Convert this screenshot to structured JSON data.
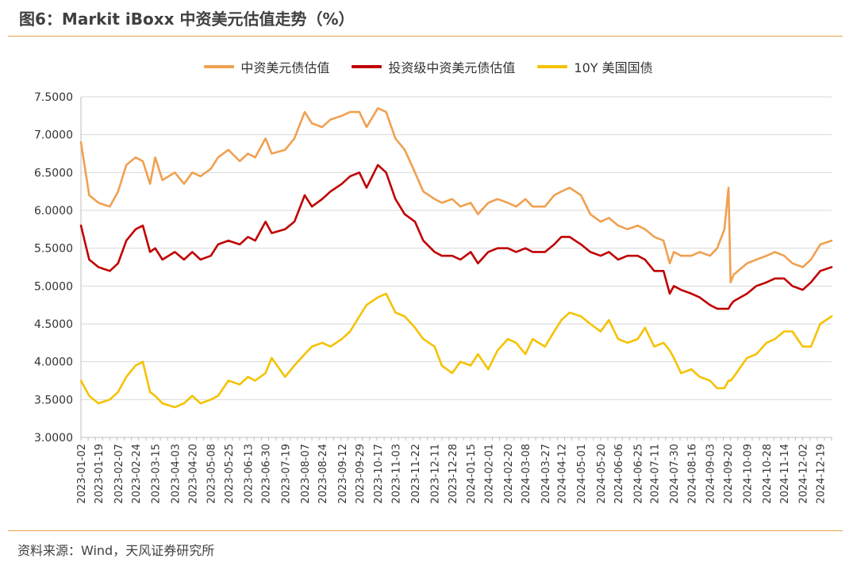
{
  "figure": {
    "title": "图6：Markit iBoxx 中资美元估值走势（%）",
    "source": "资料来源：Wind，天风证券研究所"
  },
  "chart_data": {
    "type": "line",
    "title": "图6：Markit iBoxx 中资美元估值走势（%）",
    "xlabel": "",
    "ylabel": "",
    "ylim": [
      3.0,
      7.5
    ],
    "yticks": [
      "3.0000",
      "3.5000",
      "4.0000",
      "4.5000",
      "5.0000",
      "5.5000",
      "6.0000",
      "6.5000",
      "7.0000",
      "7.5000"
    ],
    "x_range": [
      "2023-01-02",
      "2024-12-30"
    ],
    "x_ticks": [
      "2023-01-02",
      "2023-01-19",
      "2023-02-07",
      "2023-02-24",
      "2023-03-15",
      "2023-04-03",
      "2023-04-20",
      "2023-05-08",
      "2023-05-25",
      "2023-06-13",
      "2023-06-30",
      "2023-07-19",
      "2023-08-07",
      "2023-08-24",
      "2023-09-12",
      "2023-09-29",
      "2023-10-17",
      "2023-11-03",
      "2023-11-22",
      "2023-12-11",
      "2023-12-28",
      "2024-01-15",
      "2024-02-01",
      "2024-02-20",
      "2024-03-08",
      "2024-03-27",
      "2024-04-12",
      "2024-05-01",
      "2024-05-20",
      "2024-06-06",
      "2024-06-25",
      "2024-07-11",
      "2024-07-30",
      "2024-08-16",
      "2024-09-03",
      "2024-09-20",
      "2024-10-09",
      "2024-10-28",
      "2024-11-14",
      "2024-12-02",
      "2024-12-19"
    ],
    "grid": true,
    "legend_position": "top",
    "series": [
      {
        "name": "中资美元债估值",
        "color": "#F0A050",
        "points": [
          [
            "2023-01-02",
            6.9
          ],
          [
            "2023-01-10",
            6.2
          ],
          [
            "2023-01-19",
            6.1
          ],
          [
            "2023-01-30",
            6.05
          ],
          [
            "2023-02-07",
            6.25
          ],
          [
            "2023-02-15",
            6.6
          ],
          [
            "2023-02-24",
            6.7
          ],
          [
            "2023-03-03",
            6.65
          ],
          [
            "2023-03-10",
            6.35
          ],
          [
            "2023-03-15",
            6.7
          ],
          [
            "2023-03-22",
            6.4
          ],
          [
            "2023-04-03",
            6.5
          ],
          [
            "2023-04-12",
            6.35
          ],
          [
            "2023-04-20",
            6.5
          ],
          [
            "2023-04-28",
            6.45
          ],
          [
            "2023-05-08",
            6.55
          ],
          [
            "2023-05-15",
            6.7
          ],
          [
            "2023-05-25",
            6.8
          ],
          [
            "2023-06-05",
            6.65
          ],
          [
            "2023-06-13",
            6.75
          ],
          [
            "2023-06-20",
            6.7
          ],
          [
            "2023-06-30",
            6.95
          ],
          [
            "2023-07-06",
            6.75
          ],
          [
            "2023-07-19",
            6.8
          ],
          [
            "2023-07-28",
            6.95
          ],
          [
            "2023-08-07",
            7.3
          ],
          [
            "2023-08-14",
            7.15
          ],
          [
            "2023-08-24",
            7.1
          ],
          [
            "2023-09-01",
            7.2
          ],
          [
            "2023-09-12",
            7.25
          ],
          [
            "2023-09-20",
            7.3
          ],
          [
            "2023-09-29",
            7.3
          ],
          [
            "2023-10-06",
            7.1
          ],
          [
            "2023-10-17",
            7.35
          ],
          [
            "2023-10-25",
            7.3
          ],
          [
            "2023-11-03",
            6.95
          ],
          [
            "2023-11-12",
            6.8
          ],
          [
            "2023-11-22",
            6.5
          ],
          [
            "2023-11-30",
            6.25
          ],
          [
            "2023-12-11",
            6.15
          ],
          [
            "2023-12-18",
            6.1
          ],
          [
            "2023-12-28",
            6.15
          ],
          [
            "2024-01-05",
            6.05
          ],
          [
            "2024-01-15",
            6.1
          ],
          [
            "2024-01-22",
            5.95
          ],
          [
            "2024-02-01",
            6.1
          ],
          [
            "2024-02-10",
            6.15
          ],
          [
            "2024-02-20",
            6.1
          ],
          [
            "2024-02-28",
            6.05
          ],
          [
            "2024-03-08",
            6.15
          ],
          [
            "2024-03-15",
            6.05
          ],
          [
            "2024-03-27",
            6.05
          ],
          [
            "2024-04-05",
            6.2
          ],
          [
            "2024-04-12",
            6.25
          ],
          [
            "2024-04-20",
            6.3
          ],
          [
            "2024-05-01",
            6.2
          ],
          [
            "2024-05-10",
            5.95
          ],
          [
            "2024-05-20",
            5.85
          ],
          [
            "2024-05-28",
            5.9
          ],
          [
            "2024-06-06",
            5.8
          ],
          [
            "2024-06-15",
            5.75
          ],
          [
            "2024-06-25",
            5.8
          ],
          [
            "2024-07-02",
            5.75
          ],
          [
            "2024-07-11",
            5.65
          ],
          [
            "2024-07-20",
            5.6
          ],
          [
            "2024-07-26",
            5.3
          ],
          [
            "2024-07-30",
            5.45
          ],
          [
            "2024-08-06",
            5.4
          ],
          [
            "2024-08-16",
            5.4
          ],
          [
            "2024-08-24",
            5.45
          ],
          [
            "2024-09-03",
            5.4
          ],
          [
            "2024-09-10",
            5.5
          ],
          [
            "2024-09-17",
            5.75
          ],
          [
            "2024-09-21",
            6.3
          ],
          [
            "2024-09-23",
            5.05
          ],
          [
            "2024-09-26",
            5.15
          ],
          [
            "2024-10-09",
            5.3
          ],
          [
            "2024-10-18",
            5.35
          ],
          [
            "2024-10-28",
            5.4
          ],
          [
            "2024-11-05",
            5.45
          ],
          [
            "2024-11-14",
            5.4
          ],
          [
            "2024-11-22",
            5.3
          ],
          [
            "2024-12-02",
            5.25
          ],
          [
            "2024-12-10",
            5.35
          ],
          [
            "2024-12-19",
            5.55
          ],
          [
            "2024-12-30",
            5.6
          ]
        ]
      },
      {
        "name": "投资级中资美元债估值",
        "color": "#C00000",
        "points": [
          [
            "2023-01-02",
            5.8
          ],
          [
            "2023-01-10",
            5.35
          ],
          [
            "2023-01-19",
            5.25
          ],
          [
            "2023-01-30",
            5.2
          ],
          [
            "2023-02-07",
            5.3
          ],
          [
            "2023-02-15",
            5.6
          ],
          [
            "2023-02-24",
            5.75
          ],
          [
            "2023-03-03",
            5.8
          ],
          [
            "2023-03-10",
            5.45
          ],
          [
            "2023-03-15",
            5.5
          ],
          [
            "2023-03-22",
            5.35
          ],
          [
            "2023-04-03",
            5.45
          ],
          [
            "2023-04-12",
            5.35
          ],
          [
            "2023-04-20",
            5.45
          ],
          [
            "2023-04-28",
            5.35
          ],
          [
            "2023-05-08",
            5.4
          ],
          [
            "2023-05-15",
            5.55
          ],
          [
            "2023-05-25",
            5.6
          ],
          [
            "2023-06-05",
            5.55
          ],
          [
            "2023-06-13",
            5.65
          ],
          [
            "2023-06-20",
            5.6
          ],
          [
            "2023-06-30",
            5.85
          ],
          [
            "2023-07-06",
            5.7
          ],
          [
            "2023-07-19",
            5.75
          ],
          [
            "2023-07-28",
            5.85
          ],
          [
            "2023-08-07",
            6.2
          ],
          [
            "2023-08-14",
            6.05
          ],
          [
            "2023-08-24",
            6.15
          ],
          [
            "2023-09-01",
            6.25
          ],
          [
            "2023-09-12",
            6.35
          ],
          [
            "2023-09-20",
            6.45
          ],
          [
            "2023-09-29",
            6.5
          ],
          [
            "2023-10-06",
            6.3
          ],
          [
            "2023-10-17",
            6.6
          ],
          [
            "2023-10-25",
            6.5
          ],
          [
            "2023-11-03",
            6.15
          ],
          [
            "2023-11-12",
            5.95
          ],
          [
            "2023-11-22",
            5.85
          ],
          [
            "2023-11-30",
            5.6
          ],
          [
            "2023-12-11",
            5.45
          ],
          [
            "2023-12-18",
            5.4
          ],
          [
            "2023-12-28",
            5.4
          ],
          [
            "2024-01-05",
            5.35
          ],
          [
            "2024-01-15",
            5.45
          ],
          [
            "2024-01-22",
            5.3
          ],
          [
            "2024-02-01",
            5.45
          ],
          [
            "2024-02-10",
            5.5
          ],
          [
            "2024-02-20",
            5.5
          ],
          [
            "2024-02-28",
            5.45
          ],
          [
            "2024-03-08",
            5.5
          ],
          [
            "2024-03-15",
            5.45
          ],
          [
            "2024-03-27",
            5.45
          ],
          [
            "2024-04-05",
            5.55
          ],
          [
            "2024-04-12",
            5.65
          ],
          [
            "2024-04-20",
            5.65
          ],
          [
            "2024-05-01",
            5.55
          ],
          [
            "2024-05-10",
            5.45
          ],
          [
            "2024-05-20",
            5.4
          ],
          [
            "2024-05-28",
            5.45
          ],
          [
            "2024-06-06",
            5.35
          ],
          [
            "2024-06-15",
            5.4
          ],
          [
            "2024-06-25",
            5.4
          ],
          [
            "2024-07-02",
            5.35
          ],
          [
            "2024-07-11",
            5.2
          ],
          [
            "2024-07-20",
            5.2
          ],
          [
            "2024-07-26",
            4.9
          ],
          [
            "2024-07-30",
            5.0
          ],
          [
            "2024-08-06",
            4.95
          ],
          [
            "2024-08-16",
            4.9
          ],
          [
            "2024-08-24",
            4.85
          ],
          [
            "2024-09-03",
            4.75
          ],
          [
            "2024-09-10",
            4.7
          ],
          [
            "2024-09-17",
            4.7
          ],
          [
            "2024-09-21",
            4.7
          ],
          [
            "2024-09-23",
            4.75
          ],
          [
            "2024-09-26",
            4.8
          ],
          [
            "2024-10-09",
            4.9
          ],
          [
            "2024-10-18",
            5.0
          ],
          [
            "2024-10-28",
            5.05
          ],
          [
            "2024-11-05",
            5.1
          ],
          [
            "2024-11-14",
            5.1
          ],
          [
            "2024-11-22",
            5.0
          ],
          [
            "2024-12-02",
            4.95
          ],
          [
            "2024-12-10",
            5.05
          ],
          [
            "2024-12-19",
            5.2
          ],
          [
            "2024-12-30",
            5.25
          ]
        ]
      },
      {
        "name": "10Y 美国国债",
        "color": "#F5C200",
        "points": [
          [
            "2023-01-02",
            3.75
          ],
          [
            "2023-01-10",
            3.55
          ],
          [
            "2023-01-19",
            3.45
          ],
          [
            "2023-01-30",
            3.5
          ],
          [
            "2023-02-07",
            3.6
          ],
          [
            "2023-02-15",
            3.8
          ],
          [
            "2023-02-24",
            3.95
          ],
          [
            "2023-03-03",
            4.0
          ],
          [
            "2023-03-10",
            3.6
          ],
          [
            "2023-03-15",
            3.55
          ],
          [
            "2023-03-22",
            3.45
          ],
          [
            "2023-04-03",
            3.4
          ],
          [
            "2023-04-12",
            3.45
          ],
          [
            "2023-04-20",
            3.55
          ],
          [
            "2023-04-28",
            3.45
          ],
          [
            "2023-05-08",
            3.5
          ],
          [
            "2023-05-15",
            3.55
          ],
          [
            "2023-05-25",
            3.75
          ],
          [
            "2023-06-05",
            3.7
          ],
          [
            "2023-06-13",
            3.8
          ],
          [
            "2023-06-20",
            3.75
          ],
          [
            "2023-06-30",
            3.85
          ],
          [
            "2023-07-06",
            4.05
          ],
          [
            "2023-07-19",
            3.8
          ],
          [
            "2023-07-28",
            3.95
          ],
          [
            "2023-08-07",
            4.1
          ],
          [
            "2023-08-14",
            4.2
          ],
          [
            "2023-08-24",
            4.25
          ],
          [
            "2023-09-01",
            4.2
          ],
          [
            "2023-09-12",
            4.3
          ],
          [
            "2023-09-20",
            4.4
          ],
          [
            "2023-09-29",
            4.6
          ],
          [
            "2023-10-06",
            4.75
          ],
          [
            "2023-10-17",
            4.85
          ],
          [
            "2023-10-25",
            4.9
          ],
          [
            "2023-11-03",
            4.65
          ],
          [
            "2023-11-12",
            4.6
          ],
          [
            "2023-11-22",
            4.45
          ],
          [
            "2023-11-30",
            4.3
          ],
          [
            "2023-12-11",
            4.2
          ],
          [
            "2023-12-18",
            3.95
          ],
          [
            "2023-12-28",
            3.85
          ],
          [
            "2024-01-05",
            4.0
          ],
          [
            "2024-01-15",
            3.95
          ],
          [
            "2024-01-22",
            4.1
          ],
          [
            "2024-02-01",
            3.9
          ],
          [
            "2024-02-10",
            4.15
          ],
          [
            "2024-02-20",
            4.3
          ],
          [
            "2024-02-28",
            4.25
          ],
          [
            "2024-03-08",
            4.1
          ],
          [
            "2024-03-15",
            4.3
          ],
          [
            "2024-03-27",
            4.2
          ],
          [
            "2024-04-05",
            4.4
          ],
          [
            "2024-04-12",
            4.55
          ],
          [
            "2024-04-20",
            4.65
          ],
          [
            "2024-05-01",
            4.6
          ],
          [
            "2024-05-10",
            4.5
          ],
          [
            "2024-05-20",
            4.4
          ],
          [
            "2024-05-28",
            4.55
          ],
          [
            "2024-06-06",
            4.3
          ],
          [
            "2024-06-15",
            4.25
          ],
          [
            "2024-06-25",
            4.3
          ],
          [
            "2024-07-02",
            4.45
          ],
          [
            "2024-07-11",
            4.2
          ],
          [
            "2024-07-20",
            4.25
          ],
          [
            "2024-07-26",
            4.15
          ],
          [
            "2024-07-30",
            4.05
          ],
          [
            "2024-08-06",
            3.85
          ],
          [
            "2024-08-16",
            3.9
          ],
          [
            "2024-08-24",
            3.8
          ],
          [
            "2024-09-03",
            3.75
          ],
          [
            "2024-09-10",
            3.65
          ],
          [
            "2024-09-17",
            3.65
          ],
          [
            "2024-09-21",
            3.75
          ],
          [
            "2024-09-23",
            3.75
          ],
          [
            "2024-09-26",
            3.8
          ],
          [
            "2024-10-09",
            4.05
          ],
          [
            "2024-10-18",
            4.1
          ],
          [
            "2024-10-28",
            4.25
          ],
          [
            "2024-11-05",
            4.3
          ],
          [
            "2024-11-14",
            4.4
          ],
          [
            "2024-11-22",
            4.4
          ],
          [
            "2024-12-02",
            4.2
          ],
          [
            "2024-12-10",
            4.2
          ],
          [
            "2024-12-19",
            4.5
          ],
          [
            "2024-12-30",
            4.6
          ]
        ]
      }
    ]
  }
}
